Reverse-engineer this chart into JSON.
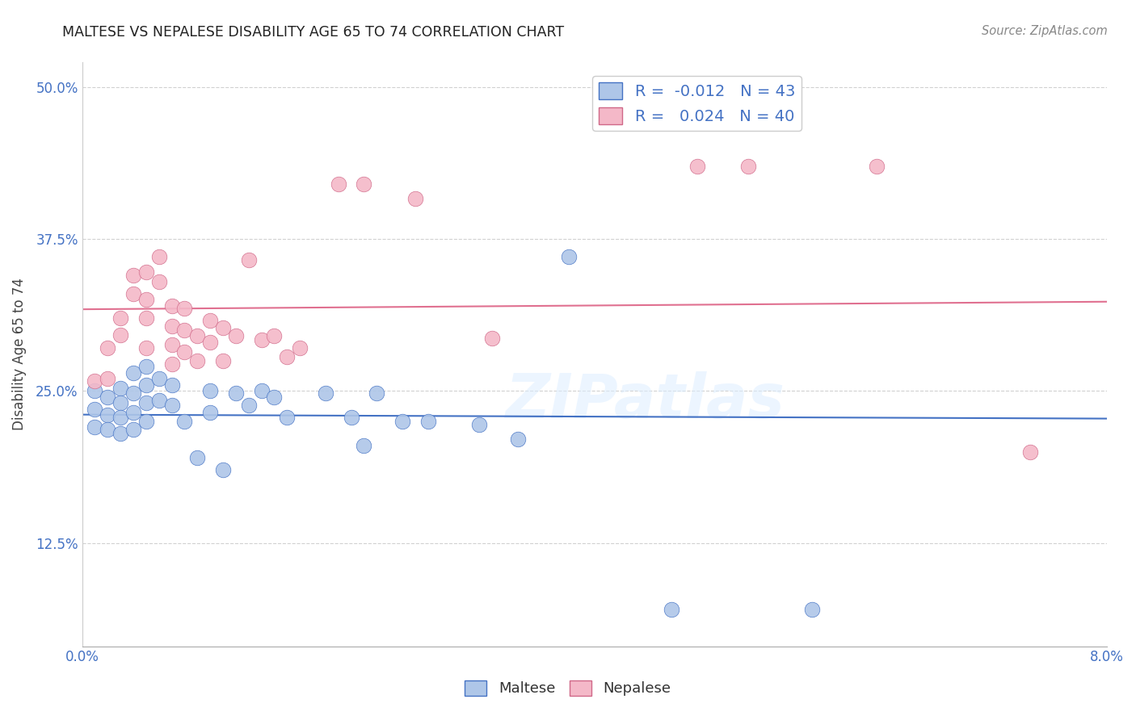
{
  "title": "MALTESE VS NEPALESE DISABILITY AGE 65 TO 74 CORRELATION CHART",
  "source_text": "Source: ZipAtlas.com",
  "ylabel": "Disability Age 65 to 74",
  "xlim": [
    0.0,
    0.08
  ],
  "ylim": [
    0.04,
    0.52
  ],
  "xticks": [
    0.0,
    0.016,
    0.032,
    0.048,
    0.064,
    0.08
  ],
  "xticklabels": [
    "0.0%",
    "",
    "",
    "",
    "",
    "8.0%"
  ],
  "yticks": [
    0.125,
    0.25,
    0.375,
    0.5
  ],
  "yticklabels": [
    "12.5%",
    "25.0%",
    "37.5%",
    "50.0%"
  ],
  "maltese_R": -0.012,
  "maltese_N": 43,
  "nepalese_R": 0.024,
  "nepalese_N": 40,
  "maltese_color": "#aec6e8",
  "nepalese_color": "#f4b8c8",
  "maltese_line_color": "#4472c4",
  "nepalese_line_color": "#e07090",
  "watermark": "ZIPatlas",
  "maltese_x": [
    0.001,
    0.001,
    0.001,
    0.002,
    0.002,
    0.002,
    0.003,
    0.003,
    0.003,
    0.003,
    0.004,
    0.004,
    0.004,
    0.004,
    0.005,
    0.005,
    0.005,
    0.005,
    0.006,
    0.006,
    0.007,
    0.007,
    0.008,
    0.009,
    0.01,
    0.01,
    0.011,
    0.012,
    0.013,
    0.014,
    0.015,
    0.016,
    0.019,
    0.021,
    0.022,
    0.023,
    0.025,
    0.027,
    0.031,
    0.034,
    0.038,
    0.046,
    0.057
  ],
  "maltese_y": [
    0.25,
    0.235,
    0.22,
    0.245,
    0.23,
    0.218,
    0.252,
    0.24,
    0.228,
    0.215,
    0.265,
    0.248,
    0.232,
    0.218,
    0.27,
    0.255,
    0.24,
    0.225,
    0.26,
    0.242,
    0.255,
    0.238,
    0.225,
    0.195,
    0.25,
    0.232,
    0.185,
    0.248,
    0.238,
    0.25,
    0.245,
    0.228,
    0.248,
    0.228,
    0.205,
    0.248,
    0.225,
    0.225,
    0.222,
    0.21,
    0.36,
    0.07,
    0.07
  ],
  "nepalese_x": [
    0.001,
    0.002,
    0.002,
    0.003,
    0.003,
    0.004,
    0.004,
    0.005,
    0.005,
    0.005,
    0.005,
    0.006,
    0.006,
    0.007,
    0.007,
    0.007,
    0.007,
    0.008,
    0.008,
    0.008,
    0.009,
    0.009,
    0.01,
    0.01,
    0.011,
    0.011,
    0.012,
    0.013,
    0.014,
    0.015,
    0.016,
    0.017,
    0.02,
    0.022,
    0.026,
    0.032,
    0.048,
    0.052,
    0.062,
    0.074
  ],
  "nepalese_y": [
    0.258,
    0.285,
    0.26,
    0.31,
    0.296,
    0.345,
    0.33,
    0.348,
    0.325,
    0.31,
    0.285,
    0.36,
    0.34,
    0.32,
    0.303,
    0.288,
    0.272,
    0.318,
    0.3,
    0.282,
    0.295,
    0.275,
    0.308,
    0.29,
    0.302,
    0.275,
    0.295,
    0.358,
    0.292,
    0.295,
    0.278,
    0.285,
    0.42,
    0.42,
    0.408,
    0.293,
    0.435,
    0.435,
    0.435,
    0.2
  ]
}
